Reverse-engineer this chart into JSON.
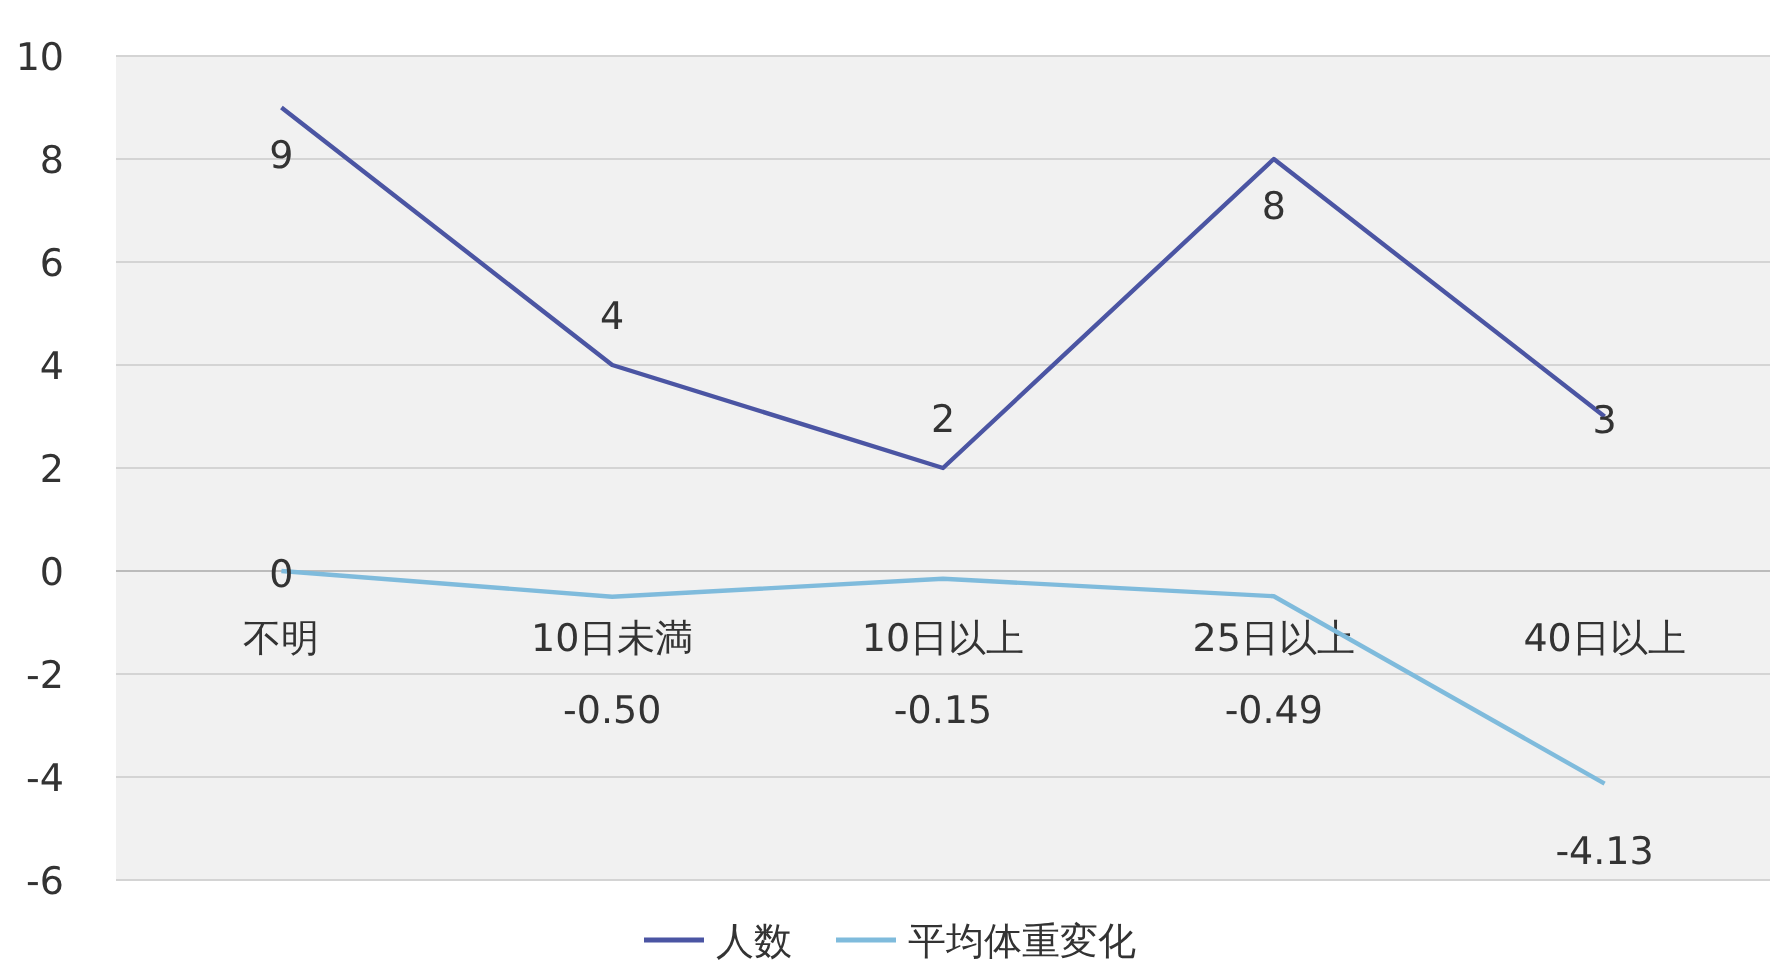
{
  "chart_data": {
    "type": "line",
    "categories": [
      "不明",
      "10日未満",
      "10日以上",
      "25日以上",
      "40日以上"
    ],
    "series": [
      {
        "name": "人数",
        "color": "#4b55a3",
        "values": [
          9,
          4,
          2,
          8,
          3
        ],
        "value_labels": [
          "9",
          "4",
          "2",
          "8",
          "3"
        ]
      },
      {
        "name": "平均体重変化",
        "color": "#7fbbdc",
        "values": [
          0,
          -0.5,
          -0.15,
          -0.49,
          -4.13
        ],
        "value_labels": [
          "0",
          "-0.50",
          "-0.15",
          "-0.49",
          "-4.13"
        ]
      }
    ],
    "ylim": [
      -6,
      10
    ],
    "yticks": [
      -6,
      -4,
      -2,
      0,
      2,
      4,
      6,
      8,
      10
    ],
    "grid": "y",
    "legend": "bottom",
    "marker": "none",
    "line_style": "solid"
  }
}
